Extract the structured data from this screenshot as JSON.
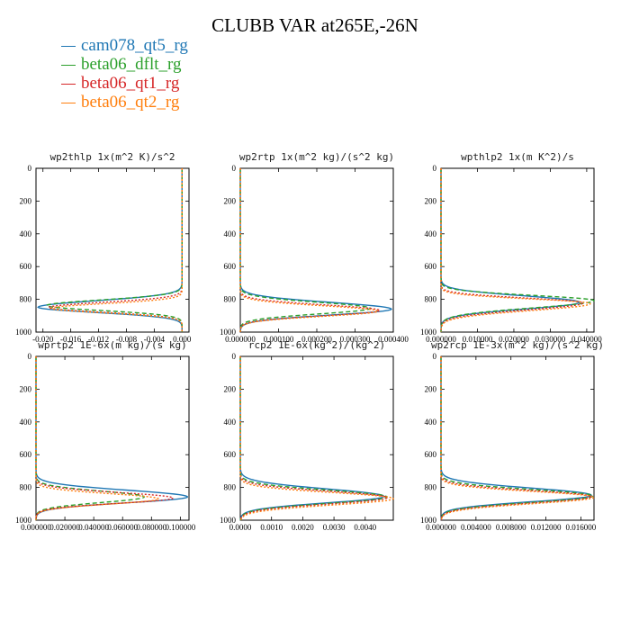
{
  "title": "CLUBB VAR at265E,-26N",
  "legend": [
    {
      "label": "cam078_qt5_rg",
      "color": "#1f77b4",
      "dash": "solid"
    },
    {
      "label": "beta06_dflt_rg",
      "color": "#2ca02c",
      "dash": "dashed"
    },
    {
      "label": "beta06_qt1_rg",
      "color": "#d62728",
      "dash": "dotted"
    },
    {
      "label": "beta06_qt2_rg",
      "color": "#ff7f0e",
      "dash": "dotted"
    }
  ],
  "chart_data": [
    {
      "type": "line",
      "title": "wp2thlp  1x(m^2 K)/s^2",
      "xlim": [
        -0.021,
        0.001
      ],
      "xticks": [
        -0.02,
        -0.016,
        -0.012,
        -0.008,
        -0.004,
        0.0
      ],
      "xtick_labels": [
        "-0.020",
        "-0.016",
        "-0.012",
        "-0.008",
        "-0.004",
        "0.000"
      ],
      "ylim": [
        1000,
        0
      ],
      "yticks": [
        0,
        200,
        400,
        600,
        800,
        1000
      ],
      "ytick_labels": [
        "0",
        "200",
        "400",
        "600",
        "800",
        "1000"
      ],
      "series": [
        {
          "name": "cam078_qt5_rg",
          "peak": -0.0207,
          "center": 848,
          "width_top": 55,
          "width_bot": 45
        },
        {
          "name": "beta06_dflt_rg",
          "peak": -0.0195,
          "center": 838,
          "width_top": 48,
          "width_bot": 42
        },
        {
          "name": "beta06_qt1_rg",
          "peak": -0.0192,
          "center": 850,
          "width_top": 44,
          "width_bot": 40
        },
        {
          "name": "beta06_qt2_rg",
          "peak": -0.0188,
          "center": 855,
          "width_top": 40,
          "width_bot": 38
        }
      ]
    },
    {
      "type": "line",
      "title": "wp2rtp  1x(m^2 kg)/(s^2 kg)",
      "xlim": [
        0,
        0.0004
      ],
      "xticks": [
        0.0,
        0.0001,
        0.0002,
        0.0003,
        0.0004
      ],
      "xtick_labels": [
        "0.000000",
        "0.000100",
        "0.000200",
        "0.000300",
        "0.000400"
      ],
      "ylim": [
        1000,
        0
      ],
      "yticks": [
        0,
        200,
        400,
        600,
        800,
        1000
      ],
      "ytick_labels": [
        "0",
        "200",
        "400",
        "600",
        "800",
        "1000"
      ],
      "series": [
        {
          "name": "cam078_qt5_rg",
          "peak": 0.000395,
          "center": 860,
          "width_top": 58,
          "width_bot": 50
        },
        {
          "name": "beta06_dflt_rg",
          "peak": 0.00034,
          "center": 855,
          "width_top": 52,
          "width_bot": 48
        },
        {
          "name": "beta06_qt1_rg",
          "peak": 0.000365,
          "center": 868,
          "width_top": 48,
          "width_bot": 45
        },
        {
          "name": "beta06_qt2_rg",
          "peak": 0.00036,
          "center": 872,
          "width_top": 46,
          "width_bot": 44
        }
      ]
    },
    {
      "type": "line",
      "title": "wpthlp2  1x(m K^2)/s",
      "xlim": [
        0,
        0.042
      ],
      "xticks": [
        0.0,
        0.01,
        0.02,
        0.03,
        0.04
      ],
      "xtick_labels": [
        "0.000000",
        "0.010000",
        "0.020000",
        "0.030000",
        "0.040000"
      ],
      "ylim": [
        1000,
        0
      ],
      "yticks": [
        0,
        200,
        400,
        600,
        800,
        1000
      ],
      "ytick_labels": [
        "0",
        "200",
        "400",
        "600",
        "800",
        "1000"
      ],
      "series": [
        {
          "name": "cam078_qt5_rg",
          "peak": 0.038,
          "center": 818,
          "width_top": 55,
          "width_bot": 58
        },
        {
          "name": "beta06_dflt_rg",
          "peak": 0.042,
          "center": 808,
          "width_top": 45,
          "width_bot": 62
        },
        {
          "name": "beta06_qt1_rg",
          "peak": 0.039,
          "center": 822,
          "width_top": 42,
          "width_bot": 60
        },
        {
          "name": "beta06_qt2_rg",
          "peak": 0.041,
          "center": 826,
          "width_top": 40,
          "width_bot": 60
        }
      ]
    },
    {
      "type": "line",
      "title": "wprtp2  1E-6x(m kg)/(s kg)",
      "xlim": [
        0,
        0.106
      ],
      "xticks": [
        0.0,
        0.02,
        0.04,
        0.06,
        0.08,
        0.1
      ],
      "xtick_labels": [
        "0.000000",
        "0.020000",
        "0.040000",
        "0.060000",
        "0.080000",
        "0.100000"
      ],
      "ylim": [
        1000,
        0
      ],
      "yticks": [
        0,
        200,
        400,
        600,
        800,
        1000
      ],
      "ytick_labels": [
        "0",
        "200",
        "400",
        "600",
        "800",
        "1000"
      ],
      "series": [
        {
          "name": "cam078_qt5_rg",
          "peak": 0.105,
          "center": 858,
          "width_top": 58,
          "width_bot": 50
        },
        {
          "name": "beta06_dflt_rg",
          "peak": 0.075,
          "center": 858,
          "width_top": 50,
          "width_bot": 48
        },
        {
          "name": "beta06_qt1_rg",
          "peak": 0.095,
          "center": 865,
          "width_top": 48,
          "width_bot": 45
        },
        {
          "name": "beta06_qt2_rg",
          "peak": 0.085,
          "center": 870,
          "width_top": 45,
          "width_bot": 44
        }
      ]
    },
    {
      "type": "line",
      "title": "rcp2  1E-6x(kg^2)/(kg^2)",
      "xlim": [
        0,
        0.0049
      ],
      "xticks": [
        0.0,
        0.001,
        0.002,
        0.003,
        0.004
      ],
      "xtick_labels": [
        "0.0000",
        "0.0010",
        "0.0020",
        "0.0030",
        "0.0040"
      ],
      "ylim": [
        1000,
        0
      ],
      "yticks": [
        0,
        200,
        400,
        600,
        800,
        1000
      ],
      "ytick_labels": [
        "0",
        "200",
        "400",
        "600",
        "800",
        "1000"
      ],
      "series": [
        {
          "name": "cam078_qt5_rg",
          "peak": 0.0046,
          "center": 855,
          "width_top": 65,
          "width_bot": 55
        },
        {
          "name": "beta06_dflt_rg",
          "peak": 0.0047,
          "center": 858,
          "width_top": 58,
          "width_bot": 55
        },
        {
          "name": "beta06_qt1_rg",
          "peak": 0.0047,
          "center": 862,
          "width_top": 55,
          "width_bot": 55
        },
        {
          "name": "beta06_qt2_rg",
          "peak": 0.0049,
          "center": 868,
          "width_top": 52,
          "width_bot": 55
        }
      ]
    },
    {
      "type": "line",
      "title": "wp2rcp  1E-3x(m^2 kg)/(s^2 kg)",
      "xlim": [
        0,
        0.0175
      ],
      "xticks": [
        0.0,
        0.004,
        0.008,
        0.012,
        0.016
      ],
      "xtick_labels": [
        "0.000000",
        "0.004000",
        "0.008000",
        "0.012000",
        "0.016000"
      ],
      "ylim": [
        1000,
        0
      ],
      "yticks": [
        0,
        200,
        400,
        600,
        800,
        1000
      ],
      "ytick_labels": [
        "0",
        "200",
        "400",
        "600",
        "800",
        "1000"
      ],
      "series": [
        {
          "name": "cam078_qt5_rg",
          "peak": 0.0172,
          "center": 848,
          "width_top": 62,
          "width_bot": 55
        },
        {
          "name": "beta06_dflt_rg",
          "peak": 0.0174,
          "center": 852,
          "width_top": 55,
          "width_bot": 55
        },
        {
          "name": "beta06_qt1_rg",
          "peak": 0.0172,
          "center": 856,
          "width_top": 52,
          "width_bot": 55
        },
        {
          "name": "beta06_qt2_rg",
          "peak": 0.0175,
          "center": 860,
          "width_top": 50,
          "width_bot": 55
        }
      ]
    }
  ]
}
